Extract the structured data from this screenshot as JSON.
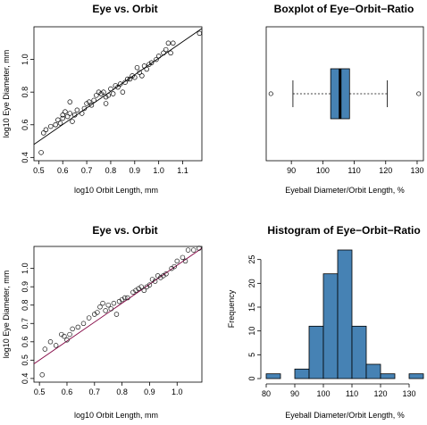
{
  "colors": {
    "box_fill": "#4682b4",
    "bar_fill": "#4682b4",
    "fit_line": "#000000",
    "fit_line_alt": "#800040"
  },
  "chart_data": [
    {
      "type": "scatter",
      "title": "Eye vs. Orbit",
      "xlabel": "log10 Orbit Length, mm",
      "ylabel": "log10 Eye Diameter, mm",
      "xlim": [
        0.48,
        1.18
      ],
      "ylim": [
        0.38,
        1.2
      ],
      "xticks": [
        "0.5",
        "0.6",
        "0.7",
        "0.8",
        "0.9",
        "1.0",
        "1.1"
      ],
      "yticks": [
        "0.4",
        "0.6",
        "0.8",
        "1.0"
      ],
      "line": {
        "x": [
          0.48,
          1.18
        ],
        "y": [
          0.48,
          1.19
        ]
      },
      "points": [
        [
          0.51,
          0.43
        ],
        [
          0.52,
          0.55
        ],
        [
          0.53,
          0.57
        ],
        [
          0.55,
          0.59
        ],
        [
          0.57,
          0.6
        ],
        [
          0.58,
          0.63
        ],
        [
          0.59,
          0.61
        ],
        [
          0.6,
          0.64
        ],
        [
          0.6,
          0.66
        ],
        [
          0.61,
          0.68
        ],
        [
          0.62,
          0.65
        ],
        [
          0.63,
          0.74
        ],
        [
          0.63,
          0.67
        ],
        [
          0.64,
          0.62
        ],
        [
          0.65,
          0.66
        ],
        [
          0.66,
          0.69
        ],
        [
          0.68,
          0.67
        ],
        [
          0.69,
          0.7
        ],
        [
          0.7,
          0.73
        ],
        [
          0.71,
          0.74
        ],
        [
          0.72,
          0.72
        ],
        [
          0.73,
          0.75
        ],
        [
          0.74,
          0.78
        ],
        [
          0.75,
          0.8
        ],
        [
          0.76,
          0.79
        ],
        [
          0.77,
          0.8
        ],
        [
          0.78,
          0.77
        ],
        [
          0.78,
          0.73
        ],
        [
          0.79,
          0.78
        ],
        [
          0.8,
          0.82
        ],
        [
          0.81,
          0.79
        ],
        [
          0.82,
          0.84
        ],
        [
          0.83,
          0.83
        ],
        [
          0.84,
          0.85
        ],
        [
          0.85,
          0.8
        ],
        [
          0.86,
          0.86
        ],
        [
          0.87,
          0.88
        ],
        [
          0.88,
          0.88
        ],
        [
          0.89,
          0.9
        ],
        [
          0.9,
          0.89
        ],
        [
          0.91,
          0.95
        ],
        [
          0.92,
          0.92
        ],
        [
          0.93,
          0.9
        ],
        [
          0.94,
          0.96
        ],
        [
          0.95,
          0.94
        ],
        [
          0.96,
          0.97
        ],
        [
          0.97,
          0.98
        ],
        [
          0.99,
          1.0
        ],
        [
          1.0,
          1.02
        ],
        [
          1.02,
          1.04
        ],
        [
          1.03,
          1.06
        ],
        [
          1.04,
          1.1
        ],
        [
          1.05,
          1.04
        ],
        [
          1.06,
          1.1
        ],
        [
          1.17,
          1.16
        ]
      ]
    },
    {
      "type": "boxplot",
      "title": "Boxplot of Eye−Orbit−Ratio",
      "xlabel": "Eyeball Diameter/Orbit Length, %",
      "xlim": [
        82,
        132
      ],
      "xticks": [
        "90",
        "100",
        "110",
        "120",
        "130"
      ],
      "whisker_low": 90.5,
      "q1": 102.5,
      "median": 105.5,
      "q3": 108.5,
      "whisker_high": 120.5,
      "outliers": [
        83.5,
        130.5
      ]
    },
    {
      "type": "scatter",
      "title": "Eye vs. Orbit",
      "xlabel": "log10 Orbit Length, mm",
      "ylabel": "log10 Eye Diameter, mm",
      "xlim": [
        0.48,
        1.09
      ],
      "ylim": [
        0.38,
        1.12
      ],
      "xticks": [
        "0.5",
        "0.6",
        "0.7",
        "0.8",
        "0.9",
        "1.0"
      ],
      "yticks": [
        "0.4",
        "0.5",
        "0.6",
        "0.7",
        "0.8",
        "0.9",
        "1.0"
      ],
      "line": {
        "x": [
          0.48,
          1.09
        ],
        "y": [
          0.48,
          1.11
        ]
      },
      "points": [
        [
          0.51,
          0.42
        ],
        [
          0.52,
          0.56
        ],
        [
          0.54,
          0.6
        ],
        [
          0.56,
          0.58
        ],
        [
          0.58,
          0.64
        ],
        [
          0.59,
          0.63
        ],
        [
          0.6,
          0.61
        ],
        [
          0.61,
          0.64
        ],
        [
          0.62,
          0.67
        ],
        [
          0.64,
          0.68
        ],
        [
          0.66,
          0.7
        ],
        [
          0.68,
          0.73
        ],
        [
          0.7,
          0.75
        ],
        [
          0.71,
          0.76
        ],
        [
          0.72,
          0.79
        ],
        [
          0.73,
          0.81
        ],
        [
          0.74,
          0.77
        ],
        [
          0.75,
          0.8
        ],
        [
          0.76,
          0.78
        ],
        [
          0.77,
          0.81
        ],
        [
          0.78,
          0.75
        ],
        [
          0.79,
          0.82
        ],
        [
          0.8,
          0.83
        ],
        [
          0.81,
          0.84
        ],
        [
          0.82,
          0.84
        ],
        [
          0.84,
          0.87
        ],
        [
          0.85,
          0.88
        ],
        [
          0.86,
          0.89
        ],
        [
          0.87,
          0.9
        ],
        [
          0.88,
          0.88
        ],
        [
          0.89,
          0.9
        ],
        [
          0.9,
          0.91
        ],
        [
          0.91,
          0.94
        ],
        [
          0.92,
          0.93
        ],
        [
          0.93,
          0.96
        ],
        [
          0.94,
          0.95
        ],
        [
          0.95,
          0.96
        ],
        [
          0.96,
          0.97
        ],
        [
          0.98,
          1.0
        ],
        [
          0.99,
          1.01
        ],
        [
          1.0,
          1.04
        ],
        [
          1.02,
          1.06
        ],
        [
          1.03,
          1.04
        ],
        [
          1.04,
          1.1
        ],
        [
          1.06,
          1.1
        ],
        [
          1.08,
          1.11
        ]
      ]
    },
    {
      "type": "bar",
      "title": "Histogram of Eye−Orbit−Ratio",
      "xlabel": "Eyeball Diameter/Orbit Length, %",
      "ylabel": "Frequency",
      "xlim": [
        80,
        135
      ],
      "ylim": [
        0,
        27
      ],
      "xticks": [
        "80",
        "90",
        "100",
        "110",
        "120",
        "130"
      ],
      "yticks": [
        "0",
        "5",
        "10",
        "15",
        "20",
        "25"
      ],
      "bins": [
        [
          80,
          85
        ],
        [
          85,
          90
        ],
        [
          90,
          95
        ],
        [
          95,
          100
        ],
        [
          100,
          105
        ],
        [
          105,
          110
        ],
        [
          110,
          115
        ],
        [
          115,
          120
        ],
        [
          120,
          125
        ],
        [
          125,
          130
        ],
        [
          130,
          135
        ]
      ],
      "values": [
        1,
        0,
        2,
        11,
        22,
        27,
        11,
        3,
        1,
        0,
        1
      ]
    }
  ]
}
